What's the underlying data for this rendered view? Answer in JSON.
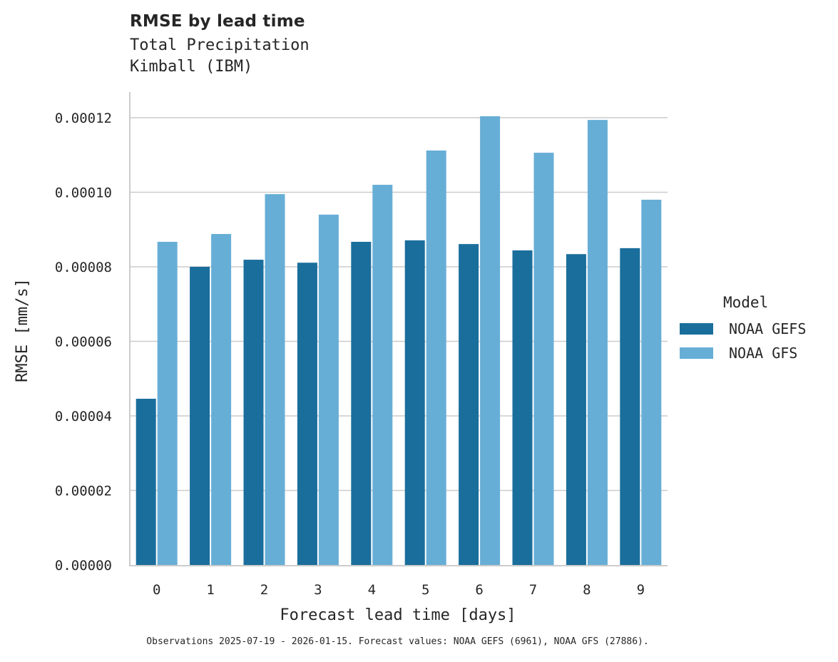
{
  "header": {
    "title": "RMSE by lead time",
    "subtitle_line1": "Total Precipitation",
    "subtitle_line2": "Kimball (IBM)"
  },
  "legend": {
    "title": "Model",
    "items": [
      {
        "label": "NOAA GEFS",
        "color": "#1a6e9c"
      },
      {
        "label": "NOAA GFS",
        "color": "#67aed6"
      }
    ]
  },
  "footnote": "Observations 2025-07-19 - 2026-01-15. Forecast values: NOAA GEFS (6961), NOAA GFS (27886).",
  "chart_data": {
    "type": "bar",
    "title": "RMSE by lead time",
    "subtitle": "Total Precipitation / Kimball (IBM)",
    "xlabel": "Forecast lead time [days]",
    "ylabel": "RMSE [mm/s]",
    "categories": [
      "0",
      "1",
      "2",
      "3",
      "4",
      "5",
      "6",
      "7",
      "8",
      "9"
    ],
    "series": [
      {
        "name": "NOAA GEFS",
        "color": "#1a6e9c",
        "values": [
          4.46e-05,
          8e-05,
          8.19e-05,
          8.11e-05,
          8.67e-05,
          8.71e-05,
          8.61e-05,
          8.44e-05,
          8.34e-05,
          8.5e-05
        ]
      },
      {
        "name": "NOAA GFS",
        "color": "#67aed6",
        "values": [
          8.67e-05,
          8.88e-05,
          9.95e-05,
          9.4e-05,
          0.000102,
          0.0001112,
          0.0001204,
          0.0001106,
          0.0001194,
          9.8e-05
        ]
      }
    ],
    "yticks": [
      0,
      2e-05,
      4e-05,
      6e-05,
      8e-05,
      0.0001,
      0.00012
    ],
    "ytick_labels": [
      "0.00000",
      "0.00002",
      "0.00004",
      "0.00006",
      "0.00008",
      "0.00010",
      "0.00012"
    ],
    "ylim": [
      0,
      0.000127
    ],
    "grid": "y",
    "legend_position": "right"
  }
}
